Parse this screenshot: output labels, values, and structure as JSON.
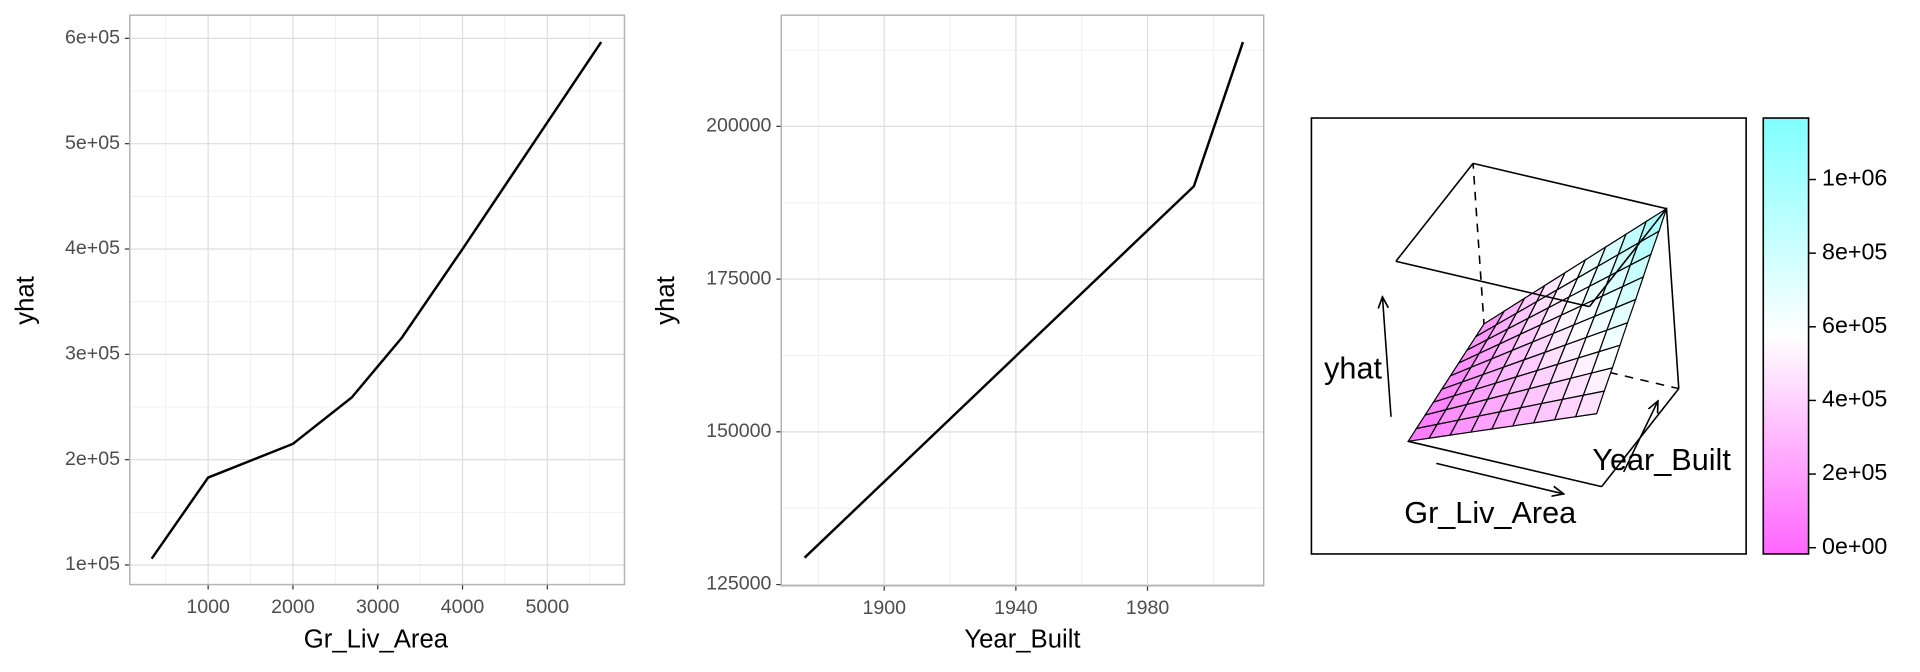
{
  "chart_data": [
    {
      "type": "line",
      "xlabel": "Gr_Liv_Area",
      "ylabel": "yhat",
      "x": [
        334,
        1000,
        2000,
        2693,
        3286,
        4000,
        5635
      ],
      "values": [
        106000,
        183000,
        215000,
        259000,
        316000,
        400000,
        596500
      ],
      "color": "#000000",
      "grid": true,
      "xlim": [
        76,
        5910
      ],
      "xticks": [
        1000,
        2000,
        3000,
        4000,
        5000
      ],
      "ylim": [
        81400,
        622000
      ],
      "yticks": [
        {
          "value": 100000,
          "label": "1e+05"
        },
        {
          "value": 200000,
          "label": "2e+05"
        },
        {
          "value": 300000,
          "label": "3e+05"
        },
        {
          "value": 400000,
          "label": "4e+05"
        },
        {
          "value": 500000,
          "label": "5e+05"
        },
        {
          "value": 600000,
          "label": "6e+05"
        }
      ]
    },
    {
      "type": "line",
      "xlabel": "Year_Built",
      "ylabel": "yhat",
      "x": [
        1875.8,
        1994.1,
        2009
      ],
      "values": [
        129400,
        190200,
        213800
      ],
      "color": "#000000",
      "grid": true,
      "xlim": [
        1868.7,
        2015.3
      ],
      "xticks": [
        1900,
        1940,
        1980
      ],
      "ylim": [
        124800,
        218200
      ],
      "yticks": [
        125000,
        150000,
        175000,
        200000
      ]
    },
    {
      "type": "surface",
      "xlabel": "Gr_Liv_Area",
      "ylabel": "Year_Built",
      "zlabel": "yhat",
      "x": [
        334,
        924,
        1514,
        2103,
        2693,
        3283,
        3872,
        4462,
        5052,
        5642
      ],
      "y": [
        1872,
        1887,
        1903,
        1918,
        1933,
        1949,
        1964,
        1979,
        1995,
        2010
      ],
      "z": [
        [
          40000,
          52000,
          64000,
          76000,
          88000,
          100000,
          112000,
          124000,
          136000,
          148000
        ],
        [
          85000,
          103000,
          121000,
          139000,
          157000,
          175000,
          193000,
          211000,
          229000,
          247000
        ],
        [
          130000,
          154000,
          178000,
          202000,
          226000,
          250000,
          274000,
          298000,
          322000,
          346000
        ],
        [
          175000,
          205000,
          235000,
          265000,
          295000,
          325000,
          355000,
          385000,
          415000,
          445000
        ],
        [
          220000,
          256000,
          292000,
          328000,
          364000,
          400000,
          436000,
          472000,
          508000,
          544000
        ],
        [
          265000,
          307000,
          349000,
          391000,
          433000,
          475000,
          517000,
          559000,
          601000,
          643000
        ],
        [
          310000,
          358000,
          406000,
          454000,
          502000,
          550000,
          598000,
          646000,
          694000,
          742000
        ],
        [
          355000,
          409000,
          463000,
          517000,
          571000,
          625000,
          679000,
          733000,
          787000,
          841000
        ],
        [
          400000,
          460000,
          520000,
          580000,
          640000,
          700000,
          760000,
          820000,
          880000,
          940000
        ],
        [
          445000,
          511000,
          577000,
          643000,
          709000,
          775000,
          841000,
          907000,
          973000,
          1039000
        ]
      ],
      "zlim": [
        40000,
        1039000
      ],
      "colormap": [
        "#ff66ff",
        "#ffffff",
        "#80ffff"
      ],
      "colorbar_lim": [
        -17000,
        1167000
      ],
      "colorbar_ticks": [
        {
          "value": 0,
          "label": "0e+00"
        },
        {
          "value": 200000,
          "label": "2e+05"
        },
        {
          "value": 400000,
          "label": "4e+05"
        },
        {
          "value": 600000,
          "label": "6e+05"
        },
        {
          "value": 800000,
          "label": "8e+05"
        },
        {
          "value": 1000000,
          "label": "1e+06"
        }
      ]
    }
  ]
}
